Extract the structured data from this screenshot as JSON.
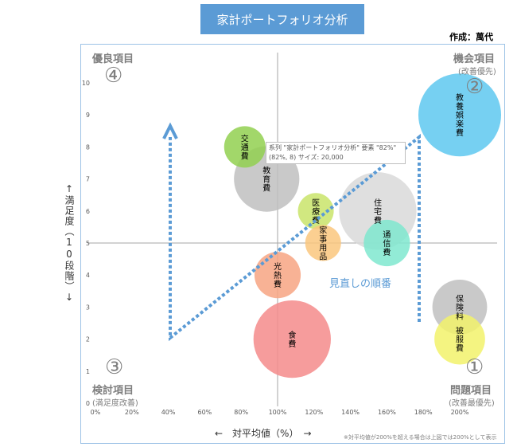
{
  "title": "家計ポートフォリオ分析",
  "author": "作成：萬代",
  "quadrants": {
    "q4": {
      "num": "④",
      "label": "優良項目",
      "sub": ""
    },
    "q2": {
      "num": "②",
      "label": "機会項目",
      "sub": "(改善優先)"
    },
    "q3": {
      "num": "③",
      "label": "検討項目",
      "sub": "(満足度改善)"
    },
    "q1": {
      "num": "①",
      "label": "問題項目",
      "sub": "(改善最優先)"
    }
  },
  "axis": {
    "xlabel": "←　対平均値（%）　→",
    "ylabel": "↑満足度（10段階）↓"
  },
  "footnote": "※対平均値が200%を超える場合は上図では200%として表示",
  "tooltip": {
    "line1": "系列 \"家計ポートフォリオ分析\" 要素 \"82%\"",
    "line2": "(82%, 8) サイズ: 20,000"
  },
  "annotation": "見直しの順番",
  "colors": {
    "accent": "#5b9bd5",
    "axis": "#a6a6a6",
    "arrow": "#5b9bd5"
  },
  "chart_data": {
    "type": "scatter",
    "title": "家計ポートフォリオ分析",
    "xlabel": "←　対平均値（%）　→",
    "ylabel": "↑満足度（10段階）↓",
    "xlim": [
      0,
      200
    ],
    "ylim": [
      0,
      10
    ],
    "x_ticks": [
      "0%",
      "20%",
      "40%",
      "60%",
      "80%",
      "100%",
      "120%",
      "140%",
      "160%",
      "180%",
      "200%"
    ],
    "y_ticks": [
      "0",
      "1",
      "2",
      "3",
      "4",
      "5",
      "6",
      "7",
      "8",
      "9",
      "10"
    ],
    "crosshair": {
      "x": 100,
      "y": 5
    },
    "bubbles": [
      {
        "label": "教養娯楽費",
        "x": 200,
        "y": 9,
        "size": 80000,
        "color": "#5ec8f0"
      },
      {
        "label": "交通費",
        "x": 82,
        "y": 8,
        "size": 20000,
        "color": "#92d050"
      },
      {
        "label": "教育費",
        "x": 94,
        "y": 7,
        "size": 50000,
        "color": "#bfbfbf"
      },
      {
        "label": "住宅費",
        "x": 155,
        "y": 6,
        "size": 70000,
        "color": "#d9d9d9"
      },
      {
        "label": "医療費",
        "x": 121,
        "y": 6,
        "size": 15000,
        "color": "#c9e46a"
      },
      {
        "label": "家事用品",
        "x": 125,
        "y": 5,
        "size": 15000,
        "color": "#fac77e"
      },
      {
        "label": "通信費",
        "x": 160,
        "y": 5,
        "size": 25000,
        "color": "#7fe8cf"
      },
      {
        "label": "光熱費",
        "x": 100,
        "y": 4,
        "size": 25000,
        "color": "#f7a482"
      },
      {
        "label": "食費",
        "x": 108,
        "y": 2,
        "size": 70000,
        "color": "#f58b8b"
      },
      {
        "label": "保険料",
        "x": 200,
        "y": 3,
        "size": 35000,
        "color": "#bfbfbf"
      },
      {
        "label": "被服費",
        "x": 200,
        "y": 2,
        "size": 30000,
        "color": "#f2f26b"
      }
    ]
  }
}
